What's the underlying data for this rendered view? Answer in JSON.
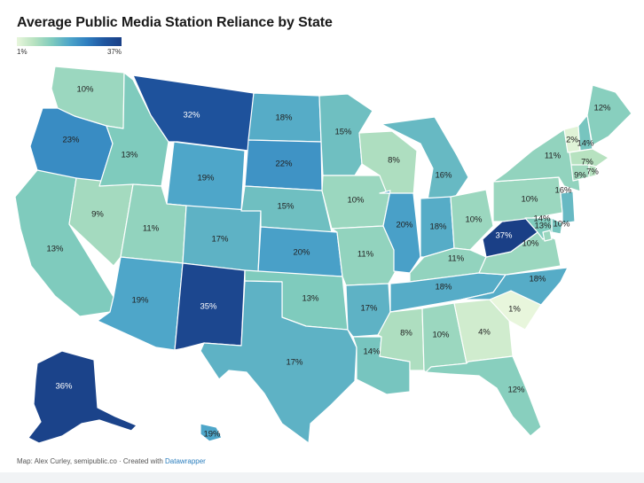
{
  "title": "Average Public Media Station Reliance by State",
  "legend": {
    "min_label": "1%",
    "max_label": "37%",
    "min_value": 1,
    "max_value": 37,
    "colors": [
      "#e8f6dc",
      "#b7e2c0",
      "#7fcbbd",
      "#4ea6c9",
      "#2f7fc0",
      "#1f56a0",
      "#1a3f86"
    ]
  },
  "footer": {
    "credit": "Map: Alex Curley, semipublic.co · Created with ",
    "tool": "Datawrapper"
  },
  "states": [
    {
      "code": "WA",
      "label": "10%",
      "value": 10
    },
    {
      "code": "OR",
      "label": "23%",
      "value": 23
    },
    {
      "code": "CA",
      "label": "13%",
      "value": 13
    },
    {
      "code": "NV",
      "label": "9%",
      "value": 9
    },
    {
      "code": "ID",
      "label": "13%",
      "value": 13
    },
    {
      "code": "MT",
      "label": "32%",
      "value": 32
    },
    {
      "code": "WY",
      "label": "19%",
      "value": 19
    },
    {
      "code": "UT",
      "label": "11%",
      "value": 11
    },
    {
      "code": "AZ",
      "label": "19%",
      "value": 19
    },
    {
      "code": "CO",
      "label": "17%",
      "value": 17
    },
    {
      "code": "NM",
      "label": "35%",
      "value": 35
    },
    {
      "code": "ND",
      "label": "18%",
      "value": 18
    },
    {
      "code": "SD",
      "label": "22%",
      "value": 22
    },
    {
      "code": "NE",
      "label": "15%",
      "value": 15
    },
    {
      "code": "KS",
      "label": "20%",
      "value": 20
    },
    {
      "code": "OK",
      "label": "13%",
      "value": 13
    },
    {
      "code": "TX",
      "label": "17%",
      "value": 17
    },
    {
      "code": "MN",
      "label": "15%",
      "value": 15
    },
    {
      "code": "IA",
      "label": "10%",
      "value": 10
    },
    {
      "code": "MO",
      "label": "11%",
      "value": 11
    },
    {
      "code": "AR",
      "label": "17%",
      "value": 17
    },
    {
      "code": "LA",
      "label": "14%",
      "value": 14
    },
    {
      "code": "WI",
      "label": "8%",
      "value": 8
    },
    {
      "code": "IL",
      "label": "20%",
      "value": 20
    },
    {
      "code": "MI",
      "label": "16%",
      "value": 16
    },
    {
      "code": "IN",
      "label": "18%",
      "value": 18
    },
    {
      "code": "OH",
      "label": "10%",
      "value": 10
    },
    {
      "code": "KY",
      "label": "11%",
      "value": 11
    },
    {
      "code": "TN",
      "label": "18%",
      "value": 18
    },
    {
      "code": "MS",
      "label": "8%",
      "value": 8
    },
    {
      "code": "AL",
      "label": "10%",
      "value": 10
    },
    {
      "code": "GA",
      "label": "4%",
      "value": 4
    },
    {
      "code": "FL",
      "label": "12%",
      "value": 12
    },
    {
      "code": "SC",
      "label": "1%",
      "value": 1
    },
    {
      "code": "NC",
      "label": "18%",
      "value": 18
    },
    {
      "code": "VA",
      "label": "10%",
      "value": 10
    },
    {
      "code": "WV",
      "label": "37%",
      "value": 37
    },
    {
      "code": "PA",
      "label": "10%",
      "value": 10
    },
    {
      "code": "NY",
      "label": "11%",
      "value": 11
    },
    {
      "code": "VT",
      "label": "2%",
      "value": 2
    },
    {
      "code": "NH",
      "label": "14%",
      "value": 14
    },
    {
      "code": "ME",
      "label": "12%",
      "value": 12
    },
    {
      "code": "MA",
      "label": "7%",
      "value": 7
    },
    {
      "code": "CT",
      "label": "9%",
      "value": 9
    },
    {
      "code": "RI",
      "label": "7%",
      "value": 7
    },
    {
      "code": "NJ",
      "label": "16%",
      "value": 16
    },
    {
      "code": "DE",
      "label": "14%",
      "value": 14
    },
    {
      "code": "MD",
      "label": "13%",
      "value": 13
    },
    {
      "code": "DC",
      "label": "10%",
      "value": 10
    },
    {
      "code": "AK",
      "label": "36%",
      "value": 36
    },
    {
      "code": "HI",
      "label": "19%",
      "value": 19
    }
  ]
}
